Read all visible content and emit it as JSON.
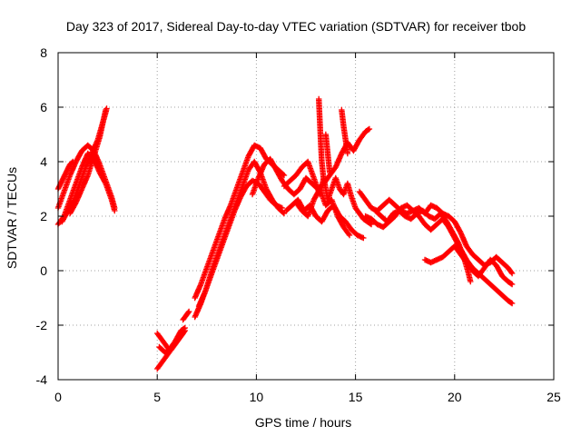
{
  "chart_data": {
    "type": "scatter",
    "title": "Day 323 of 2017, Sidereal Day-to-day VTEC variation (SDTVAR) for receiver tbob",
    "xlabel": "GPS time / hours",
    "ylabel": "SDTVAR / TECUs",
    "xlim": [
      0,
      25
    ],
    "ylim": [
      -4,
      8
    ],
    "xticks": [
      0,
      5,
      10,
      15,
      20,
      25
    ],
    "yticks": [
      -4,
      -2,
      0,
      2,
      4,
      6,
      8
    ],
    "grid": true,
    "marker": "+",
    "series": [
      {
        "name": "SDTVAR",
        "color": "#ff0000",
        "tracks": [
          [
            [
              0.0,
              1.7
            ],
            [
              0.3,
              2.0
            ],
            [
              0.6,
              2.6
            ],
            [
              0.9,
              3.2
            ],
            [
              1.2,
              3.8
            ],
            [
              1.5,
              4.3
            ],
            [
              1.8,
              4.1
            ],
            [
              2.1,
              3.6
            ],
            [
              2.4,
              3.2
            ],
            [
              2.7,
              2.6
            ],
            [
              2.85,
              2.2
            ]
          ],
          [
            [
              0.0,
              2.3
            ],
            [
              0.3,
              2.9
            ],
            [
              0.6,
              3.5
            ],
            [
              0.9,
              4.0
            ],
            [
              1.2,
              4.4
            ],
            [
              1.5,
              4.6
            ],
            [
              1.8,
              4.4
            ],
            [
              2.1,
              3.9
            ],
            [
              2.4,
              3.3
            ],
            [
              2.7,
              2.7
            ],
            [
              2.85,
              2.3
            ]
          ],
          [
            [
              0.0,
              3.0
            ],
            [
              0.2,
              3.3
            ],
            [
              0.4,
              3.6
            ],
            [
              0.6,
              3.9
            ],
            [
              0.75,
              4.0
            ]
          ],
          [
            [
              0.2,
              1.8
            ],
            [
              0.5,
              2.2
            ],
            [
              0.8,
              2.6
            ],
            [
              1.1,
              3.2
            ],
            [
              1.4,
              3.8
            ],
            [
              1.7,
              4.3
            ],
            [
              2.0,
              4.8
            ],
            [
              2.2,
              5.3
            ],
            [
              2.4,
              5.8
            ],
            [
              2.45,
              5.95
            ]
          ],
          [
            [
              0.6,
              2.1
            ],
            [
              0.9,
              2.5
            ],
            [
              1.2,
              3.0
            ],
            [
              1.5,
              3.5
            ],
            [
              1.8,
              4.2
            ],
            [
              2.1,
              4.9
            ],
            [
              2.4,
              5.9
            ]
          ],
          [
            [
              5.0,
              -2.3
            ],
            [
              5.3,
              -2.6
            ],
            [
              5.6,
              -2.9
            ],
            [
              5.9,
              -2.6
            ],
            [
              6.2,
              -2.2
            ],
            [
              6.4,
              -2.1
            ]
          ],
          [
            [
              5.0,
              -3.6
            ],
            [
              5.3,
              -3.3
            ],
            [
              5.6,
              -3.0
            ],
            [
              5.9,
              -2.7
            ],
            [
              6.2,
              -2.4
            ],
            [
              6.4,
              -2.2
            ]
          ],
          [
            [
              5.1,
              -2.8
            ],
            [
              5.4,
              -3.0
            ],
            [
              5.7,
              -2.9
            ],
            [
              6.0,
              -2.6
            ],
            [
              6.3,
              -2.3
            ]
          ],
          [
            [
              6.3,
              -1.8
            ],
            [
              6.5,
              -1.6
            ],
            [
              6.6,
              -1.5
            ]
          ],
          [
            [
              6.9,
              -1.0
            ],
            [
              7.2,
              -0.5
            ],
            [
              7.5,
              0.1
            ],
            [
              7.8,
              0.7
            ],
            [
              8.1,
              1.3
            ],
            [
              8.4,
              1.9
            ],
            [
              8.7,
              2.4
            ],
            [
              9.0,
              3.0
            ],
            [
              9.3,
              3.6
            ],
            [
              9.6,
              4.2
            ],
            [
              9.9,
              4.6
            ],
            [
              10.2,
              4.5
            ],
            [
              10.5,
              4.1
            ],
            [
              10.8,
              3.9
            ],
            [
              11.1,
              3.7
            ],
            [
              11.4,
              3.5
            ]
          ],
          [
            [
              6.9,
              -1.7
            ],
            [
              7.2,
              -1.2
            ],
            [
              7.5,
              -0.6
            ],
            [
              7.8,
              0.1
            ],
            [
              8.1,
              0.7
            ],
            [
              8.4,
              1.3
            ],
            [
              8.7,
              1.9
            ],
            [
              9.0,
              2.5
            ],
            [
              9.3,
              3.1
            ],
            [
              9.6,
              3.7
            ],
            [
              9.9,
              4.0
            ],
            [
              10.2,
              3.6
            ],
            [
              10.5,
              3.0
            ],
            [
              10.8,
              2.6
            ],
            [
              11.1,
              2.3
            ],
            [
              11.4,
              2.1
            ]
          ],
          [
            [
              7.1,
              -1.3
            ],
            [
              7.4,
              -0.8
            ],
            [
              7.7,
              -0.2
            ],
            [
              8.0,
              0.4
            ],
            [
              8.3,
              1.0
            ],
            [
              8.6,
              1.6
            ],
            [
              8.9,
              2.2
            ],
            [
              9.2,
              2.7
            ],
            [
              9.5,
              3.1
            ],
            [
              9.8,
              3.3
            ],
            [
              10.1,
              3.2
            ],
            [
              10.4,
              2.9
            ],
            [
              10.7,
              2.6
            ],
            [
              11.0,
              2.4
            ],
            [
              11.3,
              2.3
            ]
          ],
          [
            [
              9.8,
              2.8
            ],
            [
              10.1,
              3.4
            ],
            [
              10.4,
              3.9
            ],
            [
              10.7,
              4.1
            ],
            [
              11.0,
              3.7
            ],
            [
              11.3,
              3.3
            ],
            [
              11.6,
              3.0
            ],
            [
              11.9,
              2.8
            ],
            [
              12.2,
              3.0
            ],
            [
              12.5,
              3.4
            ],
            [
              12.8,
              3.2
            ],
            [
              13.1,
              3.0
            ],
            [
              13.4,
              3.2
            ],
            [
              13.7,
              3.5
            ],
            [
              14.0,
              3.8
            ],
            [
              14.3,
              4.3
            ],
            [
              14.6,
              4.7
            ],
            [
              14.9,
              4.4
            ],
            [
              15.2,
              4.8
            ],
            [
              15.5,
              5.1
            ],
            [
              15.7,
              5.2
            ]
          ],
          [
            [
              11.4,
              3.1
            ],
            [
              11.7,
              3.3
            ],
            [
              12.0,
              3.5
            ],
            [
              12.3,
              3.8
            ],
            [
              12.6,
              4.0
            ],
            [
              12.8,
              3.6
            ],
            [
              13.0,
              3.2
            ],
            [
              13.2,
              2.8
            ],
            [
              13.4,
              3.4
            ],
            [
              13.6,
              2.6
            ],
            [
              13.8,
              3.0
            ],
            [
              14.0,
              3.4
            ],
            [
              14.2,
              3.0
            ],
            [
              14.4,
              2.8
            ],
            [
              14.6,
              3.2
            ],
            [
              14.8,
              2.7
            ],
            [
              15.0,
              2.3
            ],
            [
              15.2,
              2.1
            ],
            [
              15.4,
              1.9
            ],
            [
              15.6,
              1.8
            ],
            [
              15.8,
              1.7
            ]
          ],
          [
            [
              11.5,
              2.2
            ],
            [
              11.8,
              2.4
            ],
            [
              12.1,
              2.6
            ],
            [
              12.4,
              2.2
            ],
            [
              12.7,
              2.4
            ],
            [
              13.0,
              2.0
            ],
            [
              13.3,
              1.8
            ],
            [
              13.6,
              2.2
            ],
            [
              13.9,
              2.4
            ],
            [
              14.2,
              2.0
            ],
            [
              14.5,
              1.8
            ],
            [
              14.8,
              1.5
            ],
            [
              15.1,
              1.3
            ],
            [
              15.4,
              1.2
            ]
          ],
          [
            [
              12.0,
              2.5
            ],
            [
              12.3,
              2.2
            ],
            [
              12.6,
              2.0
            ],
            [
              12.9,
              2.6
            ],
            [
              13.2,
              3.0
            ],
            [
              13.5,
              2.4
            ],
            [
              13.8,
              2.6
            ],
            [
              14.1,
              2.0
            ],
            [
              14.4,
              1.6
            ],
            [
              14.7,
              1.3
            ]
          ],
          [
            [
              13.15,
              6.3
            ],
            [
              13.2,
              5.5
            ],
            [
              13.25,
              4.7
            ],
            [
              13.3,
              4.0
            ],
            [
              13.4,
              3.3
            ]
          ],
          [
            [
              13.5,
              5.0
            ],
            [
              13.6,
              4.3
            ],
            [
              13.7,
              3.6
            ]
          ],
          [
            [
              14.3,
              5.9
            ],
            [
              14.4,
              5.3
            ],
            [
              14.5,
              4.8
            ],
            [
              14.6,
              4.3
            ]
          ],
          [
            [
              15.2,
              2.9
            ],
            [
              15.5,
              2.6
            ],
            [
              15.8,
              2.3
            ],
            [
              16.1,
              2.2
            ],
            [
              16.4,
              2.4
            ],
            [
              16.7,
              2.6
            ],
            [
              17.0,
              2.4
            ],
            [
              17.3,
              2.2
            ],
            [
              17.6,
              2.1
            ],
            [
              17.9,
              2.2
            ],
            [
              18.2,
              2.3
            ],
            [
              18.5,
              2.1
            ],
            [
              18.8,
              2.4
            ],
            [
              19.1,
              2.3
            ],
            [
              19.4,
              2.1
            ],
            [
              19.7,
              2.0
            ],
            [
              20.0,
              1.8
            ],
            [
              20.3,
              1.4
            ],
            [
              20.6,
              0.9
            ],
            [
              20.9,
              0.6
            ],
            [
              21.2,
              0.4
            ],
            [
              21.5,
              0.2
            ],
            [
              21.8,
              0.3
            ],
            [
              22.1,
              0.5
            ],
            [
              22.4,
              0.3
            ],
            [
              22.7,
              0.1
            ],
            [
              22.9,
              -0.1
            ]
          ],
          [
            [
              15.5,
              2.0
            ],
            [
              15.8,
              1.9
            ],
            [
              16.1,
              1.7
            ],
            [
              16.4,
              1.6
            ],
            [
              16.7,
              1.8
            ],
            [
              17.0,
              2.0
            ],
            [
              17.3,
              2.3
            ],
            [
              17.6,
              2.4
            ],
            [
              17.9,
              2.2
            ],
            [
              18.2,
              2.0
            ],
            [
              18.5,
              1.7
            ],
            [
              18.8,
              1.5
            ],
            [
              19.1,
              1.7
            ],
            [
              19.4,
              1.9
            ],
            [
              19.7,
              1.6
            ],
            [
              20.0,
              1.2
            ],
            [
              20.3,
              0.8
            ],
            [
              20.6,
              0.4
            ],
            [
              20.9,
              0.1
            ],
            [
              21.2,
              -0.1
            ],
            [
              21.5,
              -0.3
            ],
            [
              21.8,
              -0.5
            ],
            [
              22.1,
              -0.7
            ],
            [
              22.4,
              -0.9
            ],
            [
              22.7,
              -1.1
            ],
            [
              22.9,
              -1.2
            ]
          ],
          [
            [
              16.0,
              2.2
            ],
            [
              16.3,
              2.0
            ],
            [
              16.6,
              1.8
            ],
            [
              16.9,
              2.1
            ],
            [
              17.2,
              2.2
            ],
            [
              17.5,
              2.0
            ],
            [
              17.8,
              1.9
            ],
            [
              18.1,
              2.1
            ],
            [
              18.4,
              2.2
            ],
            [
              18.7,
              2.0
            ],
            [
              19.0,
              1.9
            ],
            [
              19.3,
              2.1
            ],
            [
              19.6,
              1.8
            ],
            [
              19.9,
              1.4
            ],
            [
              20.2,
              1.0
            ],
            [
              20.5,
              0.4
            ],
            [
              20.7,
              -0.1
            ],
            [
              20.8,
              -0.4
            ]
          ],
          [
            [
              18.5,
              0.4
            ],
            [
              18.8,
              0.3
            ],
            [
              19.1,
              0.4
            ],
            [
              19.4,
              0.5
            ],
            [
              19.7,
              0.7
            ],
            [
              20.0,
              0.9
            ],
            [
              20.3,
              0.6
            ],
            [
              20.6,
              0.3
            ],
            [
              20.9,
              0.0
            ],
            [
              21.2,
              -0.2
            ],
            [
              21.5,
              0.1
            ],
            [
              21.8,
              0.4
            ],
            [
              22.1,
              0.2
            ],
            [
              22.4,
              -0.2
            ],
            [
              22.7,
              -0.4
            ],
            [
              22.9,
              -0.5
            ]
          ]
        ]
      }
    ]
  }
}
